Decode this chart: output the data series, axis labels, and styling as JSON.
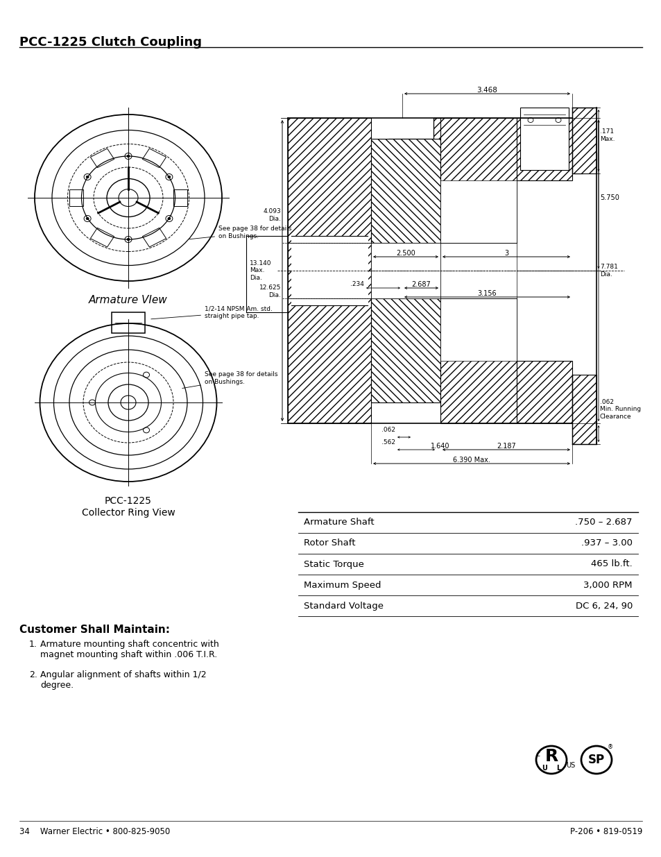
{
  "title": "PCC-1225 Clutch Coupling",
  "bg_color": "#ffffff",
  "text_color": "#000000",
  "title_fontsize": 13,
  "body_fontsize": 9,
  "small_fontsize": 7,
  "table_rows": [
    [
      "Armature Shaft",
      ".750 – 2.687"
    ],
    [
      "Rotor Shaft",
      ".937 – 3.00"
    ],
    [
      "Static Torque",
      "465 lb.ft."
    ],
    [
      "Maximum Speed",
      "3,000 RPM"
    ],
    [
      "Standard Voltage",
      "DC 6, 24, 90"
    ]
  ],
  "footer_left": "34    Warner Electric • 800-825-9050",
  "footer_right": "P-206 • 819-0519",
  "armature_label": "Armature VIew",
  "collector_label1": "PCC-1225",
  "collector_label2": "Collector Ring View",
  "see_page_bushings1": "See page 38 for details\non Bushings.",
  "see_page_bushings2": "See page 38 for details\non Bushings.",
  "pipe_tap_label": "1/2-14 NPSM Am. std.\nstraight pipe tap.",
  "customer_title": "Customer Shall Maintain:",
  "customer_items": [
    "Armature mounting shaft concentric with\nmagnet mounting shaft within .006 T.I.R.",
    "Angular alignment of shafts within 1/2\ndegree."
  ],
  "dim_3468": "3.468",
  "dim_171max": ".171\nMax.",
  "dim_5750": "5.750",
  "dim_7781dia": "7.781\nDia.",
  "dim_13140": "13.140\nMax.\nDia.",
  "dim_4093": "4.093\nDia.",
  "dim_2500": "2.500",
  "dim_3": "3",
  "dim_12625": "12.625\nDia.",
  "dim_234": ".234",
  "dim_2687": "2.687",
  "dim_3156": "3.156",
  "dim_062t": ".062",
  "dim_562": ".562",
  "dim_1640": "1.640",
  "dim_2187": "2.187",
  "dim_062r": ".062\nMin. Running\nClearance",
  "dim_6390": "6.390 Max."
}
